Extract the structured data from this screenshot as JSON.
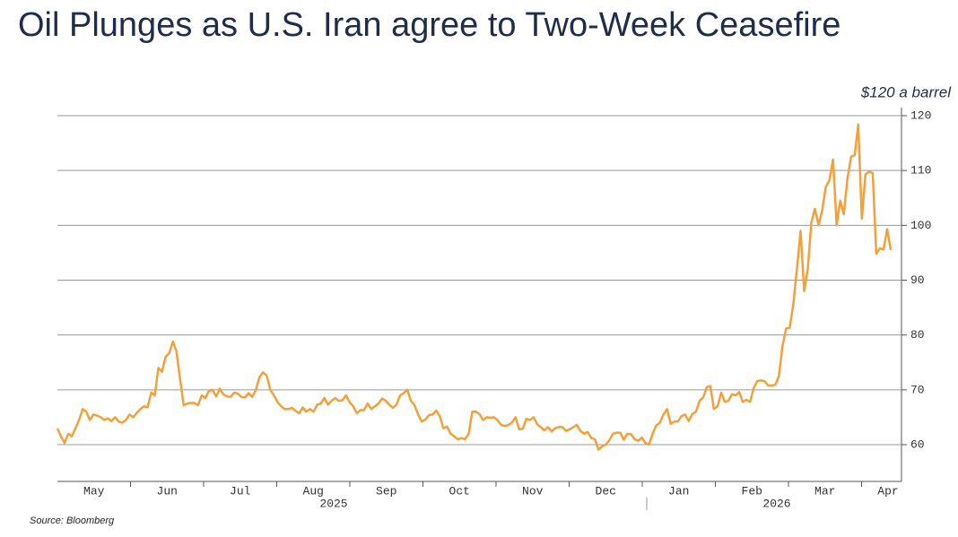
{
  "chart_data": {
    "type": "line",
    "title": "Oil Plunges as U.S. Iran agree to Two-Week Ceasefire",
    "annotation": "$120 a barrel",
    "source": "Source: Bloomberg",
    "months": [
      "May",
      "Jun",
      "Jul",
      "Aug",
      "Sep",
      "Oct",
      "Nov",
      "Dec",
      "Jan",
      "Feb",
      "Mar",
      "Apr"
    ],
    "years": [
      "2025",
      "2026"
    ],
    "color": "#f4a03a",
    "grid": true,
    "ylim": [
      53.3,
      120
    ],
    "yticks": [
      60,
      70,
      80,
      90,
      100,
      110,
      120
    ],
    "values": [
      63,
      61.5,
      60.3,
      62,
      61.5,
      63,
      64.5,
      66.5,
      66,
      64.5,
      65.5,
      65.3,
      65,
      64.5,
      64.8,
      64.3,
      65,
      64.2,
      64,
      64.5,
      65.5,
      65,
      65.8,
      66.5,
      67,
      66.8,
      69.5,
      69,
      74,
      73.3,
      76,
      76.7,
      78.8,
      77,
      72,
      67.2,
      67.5,
      67.6,
      67.6,
      67.2,
      69,
      68.5,
      69.8,
      70,
      68.8,
      70.2,
      69.2,
      68.8,
      68.7,
      69.5,
      69.3,
      68.7,
      68.6,
      69.4,
      68.7,
      70,
      72.3,
      73.2,
      72.6,
      70,
      69,
      67.8,
      67,
      66.5,
      66.5,
      66.7,
      66.2,
      65.7,
      66.8,
      66,
      66.5,
      66,
      67.3,
      67.5,
      68.5,
      67.3,
      68,
      68.5,
      68,
      68.1,
      69,
      67.7,
      67,
      65.7,
      66.3,
      66.3,
      67.5,
      66.5,
      67,
      67.5,
      68.4,
      68,
      67.3,
      66.7,
      67.3,
      69,
      69.4,
      70,
      68,
      67.2,
      65.5,
      64.2,
      64.6,
      65.4,
      65.5,
      66.2,
      65.2,
      63,
      63.3,
      62,
      61.5,
      61,
      61.2,
      61,
      62,
      66,
      66,
      65.6,
      64.5,
      65,
      64.9,
      65,
      64.5,
      63.6,
      63.4,
      63.6,
      64,
      65,
      62.8,
      62.9,
      64.7,
      64.5,
      65,
      63.7,
      63.2,
      62.6,
      63.2,
      62.4,
      63,
      63.2,
      63.2,
      62.5,
      62.8,
      63.2,
      63.6,
      62.5,
      62,
      62.3,
      61.2,
      61,
      59.1,
      59.7,
      60,
      60.8,
      62,
      62.2,
      62.2,
      60.9,
      62,
      61.9,
      61,
      60.7,
      61.3,
      60.3,
      60,
      62,
      63.5,
      64,
      65.5,
      66.5,
      63.8,
      64.2,
      64.2,
      65.2,
      65.5,
      64.3,
      65.6,
      66,
      68,
      68.6,
      70.5,
      70.7,
      66.5,
      67,
      69.5,
      67.8,
      68,
      69.2,
      69,
      69.6,
      67.8,
      68.2,
      67.8,
      70.3,
      71.6,
      71.7,
      71.6,
      70.8,
      70.8,
      70.9,
      72.5,
      78,
      81.2,
      81.3,
      85.6,
      92,
      99,
      88,
      92,
      100.5,
      103,
      100,
      102.8,
      107,
      108.2,
      112,
      100,
      104.5,
      102,
      108.5,
      112.5,
      112.8,
      118.4,
      101.2,
      109.3,
      109.8,
      109.5,
      94.8,
      95.8,
      95.6,
      99.3,
      95.5
    ]
  }
}
